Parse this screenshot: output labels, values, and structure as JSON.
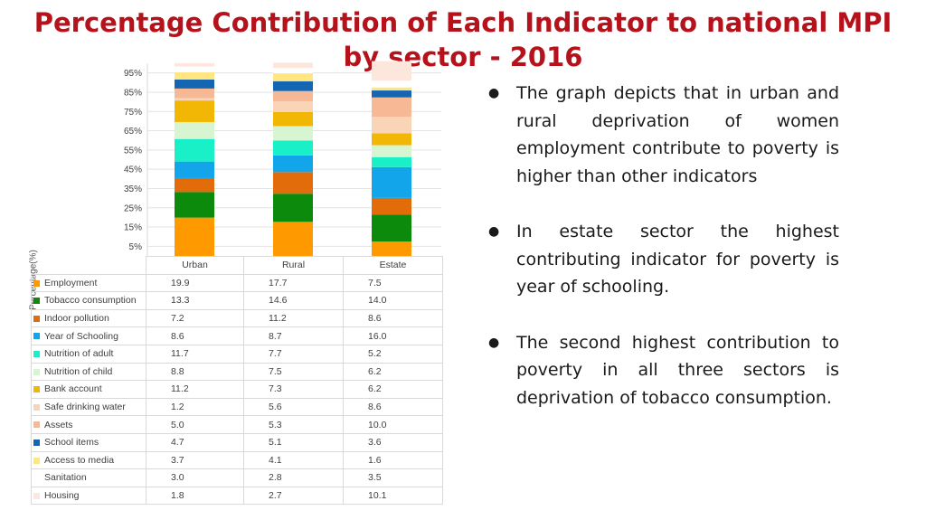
{
  "slide": {
    "title_line1": "Percentage Contribution of Each Indicator to national MPI",
    "title_line2": "by sector -  2016",
    "bullets": [
      "The graph depicts that in urban and rural deprivation of women employment contribute to poverty is higher than other indicators",
      "In estate sector the highest contributing indicator for poverty is year of schooling.",
      "The second highest contribution to poverty in all three sectors is deprivation of tobacco consumption."
    ]
  },
  "chart_data": {
    "type": "bar",
    "stacked": true,
    "categories": [
      "Urban",
      "Rural",
      "Estate"
    ],
    "ylabel": "Percentage(%)",
    "yticks": [
      "5%",
      "15%",
      "25%",
      "35%",
      "45%",
      "55%",
      "65%",
      "75%",
      "85%",
      "95%"
    ],
    "ylim": [
      0,
      100
    ],
    "grid": true,
    "series": [
      {
        "name": "Employment",
        "color": "#ff9900",
        "values": [
          19.9,
          17.7,
          7.5
        ],
        "labels": [
          "19.9",
          "17.7",
          "7.5"
        ]
      },
      {
        "name": "Tobacco consumption",
        "color": "#0b8a0b",
        "values": [
          13.3,
          14.6,
          14.0
        ],
        "labels": [
          "13.3",
          "14.6",
          "14.0"
        ]
      },
      {
        "name": "Indoor pollution",
        "color": "#e36c0a",
        "values": [
          7.2,
          11.2,
          8.6
        ],
        "labels": [
          "7.2",
          "11.2",
          "8.6"
        ]
      },
      {
        "name": "Year of Schooling",
        "color": "#12a5ea",
        "values": [
          8.6,
          8.7,
          16.0
        ],
        "labels": [
          "8.6",
          "8.7",
          "16.0"
        ]
      },
      {
        "name": "Nutrition of adult",
        "color": "#1af0c8",
        "values": [
          11.7,
          7.7,
          5.2
        ],
        "labels": [
          "11.7",
          "7.7",
          "5.2"
        ]
      },
      {
        "name": "Nutrition of child",
        "color": "#d6f5d0",
        "values": [
          8.8,
          7.5,
          6.2
        ],
        "labels": [
          "8.8",
          "7.5",
          "6.2"
        ]
      },
      {
        "name": "Bank account",
        "color": "#f2b705",
        "values": [
          11.2,
          7.3,
          6.2
        ],
        "labels": [
          "11.2",
          "7.3",
          "6.2"
        ]
      },
      {
        "name": "Safe drinking water",
        "color": "#fad4b6",
        "values": [
          1.2,
          5.6,
          8.6
        ],
        "labels": [
          "1.2",
          "5.6",
          "8.6"
        ]
      },
      {
        "name": "Assets",
        "color": "#f7b896",
        "values": [
          5.0,
          5.3,
          10.0
        ],
        "labels": [
          "5.0",
          "5.3",
          "10.0"
        ]
      },
      {
        "name": "School items",
        "color": "#1466b3",
        "values": [
          4.7,
          5.1,
          3.6
        ],
        "labels": [
          "4.7",
          "5.1",
          "3.6"
        ]
      },
      {
        "name": "Access to media",
        "color": "#ffe680",
        "values": [
          3.7,
          4.1,
          1.6
        ],
        "labels": [
          "3.7",
          "4.1",
          "1.6"
        ]
      },
      {
        "name": "Sanitation",
        "color": "#ffffff",
        "values": [
          3.0,
          2.8,
          3.5
        ],
        "labels": [
          "3.0",
          "2.8",
          "3.5"
        ]
      },
      {
        "name": "Housing",
        "color": "#fde6dc",
        "values": [
          1.8,
          2.7,
          10.1
        ],
        "labels": [
          "1.8",
          "2.7",
          "10.1"
        ]
      }
    ]
  }
}
